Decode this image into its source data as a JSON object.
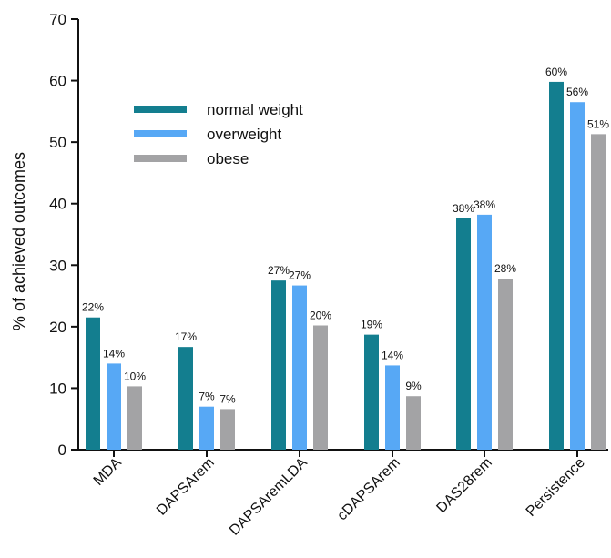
{
  "chart_data": {
    "type": "bar",
    "ylabel": "% of achieved outcomes",
    "xlabel": "",
    "ylim": [
      0,
      70
    ],
    "yticks": [
      0,
      10,
      20,
      30,
      40,
      50,
      60,
      70
    ],
    "grid": false,
    "legend_position": "top-left",
    "categories": [
      "MDA",
      "DAPSArem",
      "DAPSAremLDA",
      "cDAPSArem",
      "DAS28rem",
      "Persistence"
    ],
    "series": [
      {
        "name": "normal weight",
        "color": "#137e8f",
        "values": [
          21.5,
          16.7,
          27.5,
          18.7,
          37.6,
          59.8
        ],
        "labels": [
          "22%",
          "17%",
          "27%",
          "19%",
          "38%",
          "60%"
        ]
      },
      {
        "name": "overweight",
        "color": "#57a8f5",
        "values": [
          14.0,
          7.0,
          26.7,
          13.7,
          38.2,
          56.5
        ],
        "labels": [
          "14%",
          "7%",
          "27%",
          "14%",
          "38%",
          "56%"
        ]
      },
      {
        "name": "obese",
        "color": "#a3a3a5",
        "values": [
          10.3,
          6.6,
          20.2,
          8.7,
          27.8,
          51.3
        ],
        "labels": [
          "10%",
          "7%",
          "20%",
          "9%",
          "28%",
          "51%"
        ]
      }
    ]
  }
}
